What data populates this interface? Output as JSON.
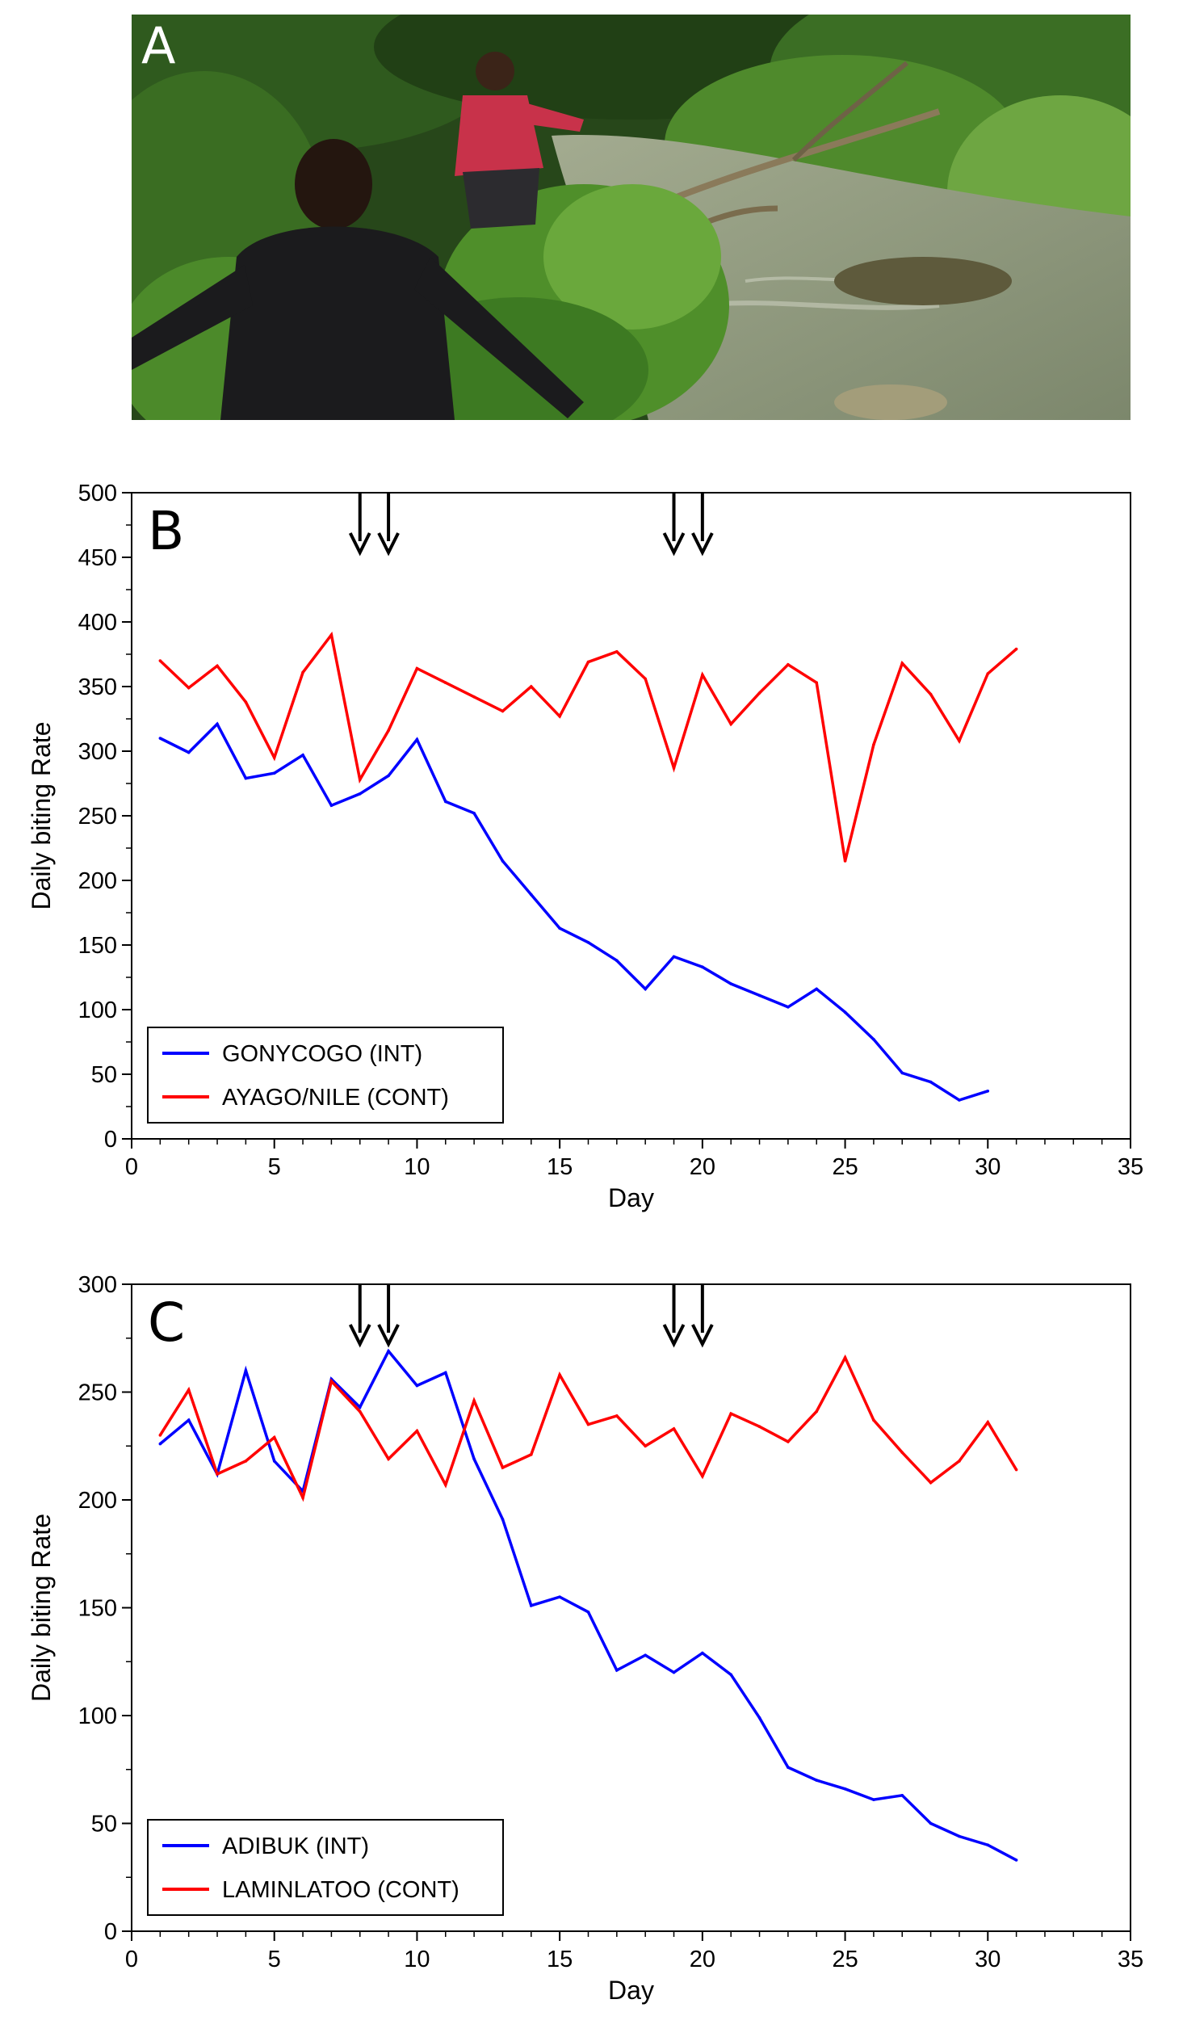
{
  "photo": {
    "letter": "A",
    "colors": {
      "foliage_dark": "#1e3d14",
      "foliage": "#3f7a24",
      "foliage_light": "#7cb84a",
      "water": "#8f9b80",
      "shirt_black": "#1b1b1d",
      "shirt_red": "#c8324a",
      "skin": "#3b2418"
    }
  },
  "chart_data": [
    {
      "panel": "B",
      "type": "line",
      "xlabel": "Day",
      "ylabel": "Daily biting Rate",
      "xlim": [
        0,
        35
      ],
      "ylim": [
        0,
        500
      ],
      "xticks": [
        0,
        5,
        10,
        15,
        20,
        25,
        30,
        35
      ],
      "yticks": [
        0,
        50,
        100,
        150,
        200,
        250,
        300,
        350,
        400,
        450,
        500
      ],
      "arrows_at_days": [
        8,
        9,
        19,
        20
      ],
      "legend_position": "bottom-left",
      "series": [
        {
          "name": "GONYCOGO (INT)",
          "color": "#0000ff",
          "x": [
            1,
            2,
            3,
            4,
            5,
            6,
            7,
            8,
            9,
            10,
            11,
            12,
            13,
            14,
            15,
            16,
            17,
            18,
            19,
            20,
            21,
            22,
            23,
            24,
            25,
            26,
            27,
            28,
            29,
            30
          ],
          "values": [
            310,
            299,
            321,
            279,
            283,
            297,
            258,
            267,
            281,
            309,
            261,
            252,
            215,
            189,
            163,
            152,
            138,
            116,
            141,
            133,
            120,
            111,
            102,
            116,
            98,
            77,
            51,
            44,
            30,
            37
          ]
        },
        {
          "name": "AYAGO/NILE (CONT)",
          "color": "#ff0000",
          "x": [
            1,
            2,
            3,
            4,
            5,
            6,
            7,
            8,
            9,
            10,
            11,
            12,
            13,
            14,
            15,
            16,
            17,
            18,
            19,
            20,
            21,
            22,
            23,
            24,
            25,
            26,
            27,
            28,
            29,
            30,
            31
          ],
          "values": [
            370,
            349,
            366,
            338,
            295,
            361,
            390,
            278,
            316,
            364,
            353,
            342,
            331,
            350,
            327,
            369,
            377,
            356,
            287,
            359,
            321,
            345,
            367,
            353,
            215,
            305,
            368,
            344,
            308,
            360,
            379
          ]
        }
      ]
    },
    {
      "panel": "C",
      "type": "line",
      "xlabel": "Day",
      "ylabel": "Daily biting Rate",
      "xlim": [
        0,
        35
      ],
      "ylim": [
        0,
        300
      ],
      "xticks": [
        0,
        5,
        10,
        15,
        20,
        25,
        30,
        35
      ],
      "yticks": [
        0,
        50,
        100,
        150,
        200,
        250,
        300
      ],
      "arrows_at_days": [
        8,
        9,
        19,
        20
      ],
      "legend_position": "bottom-left",
      "series": [
        {
          "name": "ADIBUK (INT)",
          "color": "#0000ff",
          "x": [
            1,
            2,
            3,
            4,
            5,
            6,
            7,
            8,
            9,
            10,
            11,
            12,
            13,
            14,
            15,
            16,
            17,
            18,
            19,
            20,
            21,
            22,
            23,
            24,
            25,
            26,
            27,
            28,
            29,
            30,
            31
          ],
          "values": [
            226,
            237,
            212,
            260,
            218,
            204,
            256,
            243,
            269,
            253,
            259,
            219,
            191,
            151,
            155,
            148,
            121,
            128,
            120,
            129,
            119,
            99,
            76,
            70,
            66,
            61,
            63,
            50,
            44,
            40,
            33
          ]
        },
        {
          "name": "LAMINLATOO (CONT)",
          "color": "#ff0000",
          "x": [
            1,
            2,
            3,
            4,
            5,
            6,
            7,
            8,
            9,
            10,
            11,
            12,
            13,
            14,
            15,
            16,
            17,
            18,
            19,
            20,
            21,
            22,
            23,
            24,
            25,
            26,
            27,
            28,
            29,
            30,
            31
          ],
          "values": [
            230,
            251,
            212,
            218,
            229,
            201,
            255,
            241,
            219,
            232,
            207,
            246,
            215,
            221,
            258,
            235,
            239,
            225,
            233,
            211,
            240,
            234,
            227,
            241,
            266,
            237,
            222,
            208,
            218,
            236,
            214
          ]
        }
      ]
    }
  ]
}
